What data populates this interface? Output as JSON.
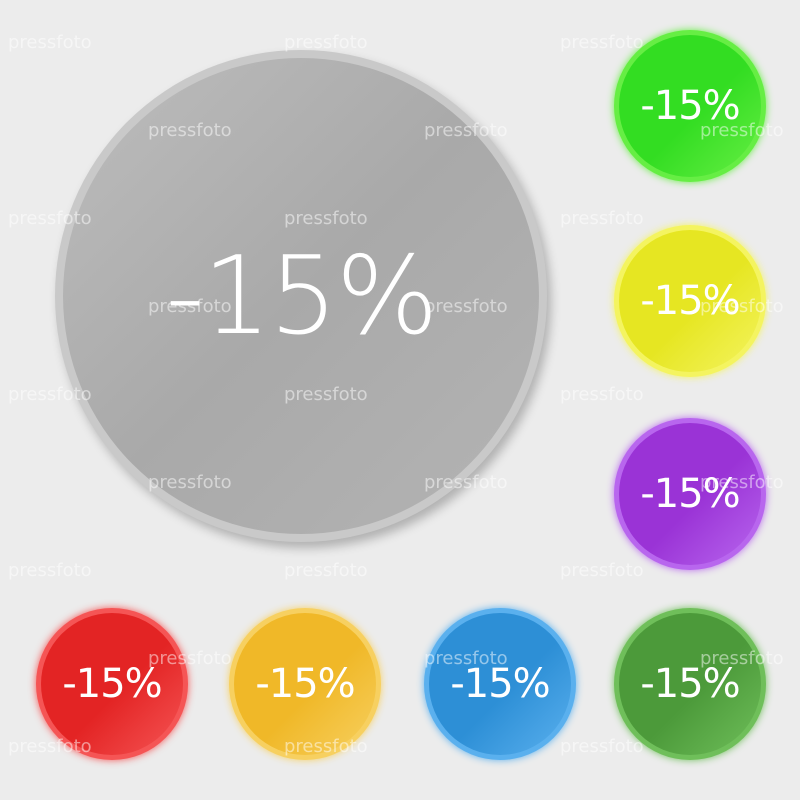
{
  "main_button": {
    "label": "-15%",
    "color": "#b0b0b0"
  },
  "buttons": [
    {
      "label": "-15%",
      "color": "#33dd22",
      "edge": "#66ee44"
    },
    {
      "label": "-15%",
      "color": "#e6e622",
      "edge": "#f4f460"
    },
    {
      "label": "-15%",
      "color": "#9a33d6",
      "edge": "#b866ee"
    },
    {
      "label": "-15%",
      "color": "#e32424",
      "edge": "#f55555"
    },
    {
      "label": "-15%",
      "color": "#f0b828",
      "edge": "#f7d060"
    },
    {
      "label": "-15%",
      "color": "#2d8fd6",
      "edge": "#5ab0ee"
    },
    {
      "label": "-15%",
      "color": "#4c9a3a",
      "edge": "#6fbf5a"
    }
  ],
  "watermark": "pressfoto"
}
